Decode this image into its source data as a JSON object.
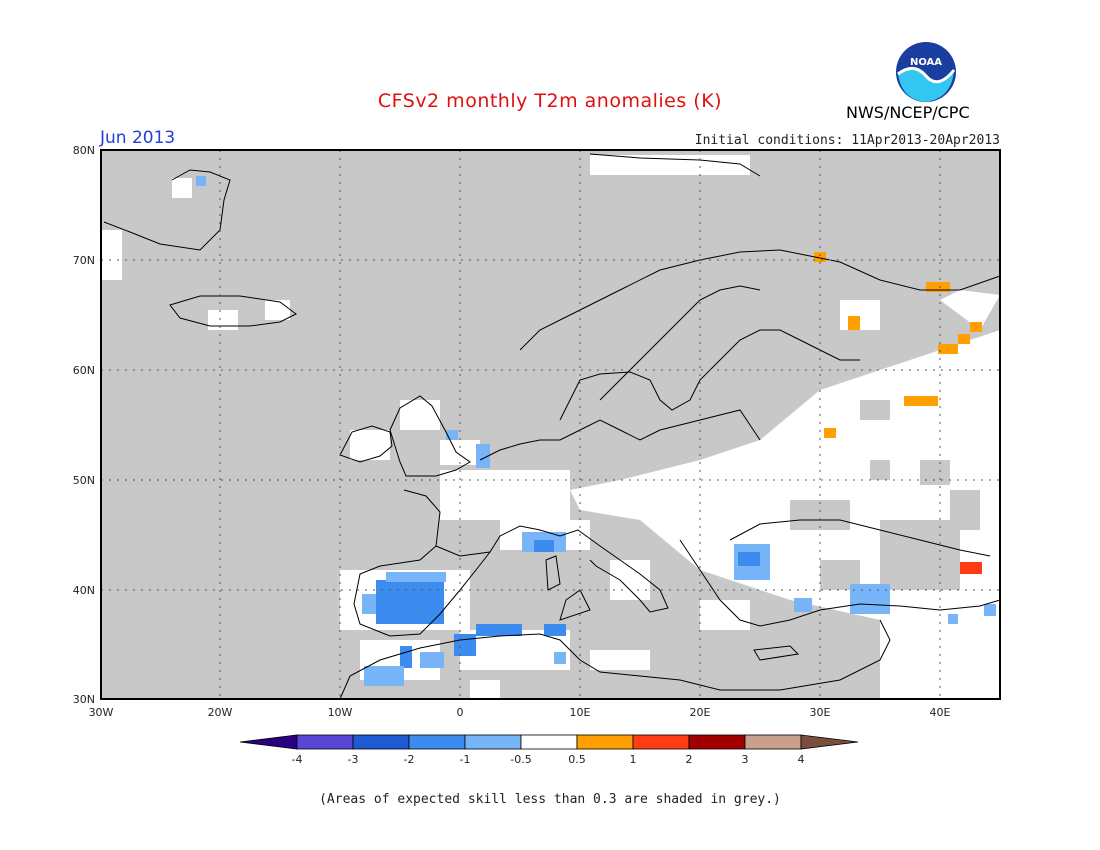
{
  "header": {
    "title": "CFSv2 monthly T2m anomalies (K)",
    "period": "Jun 2013",
    "initial_conditions": "Initial conditions: 11Apr2013-20Apr2013",
    "organization": "NWS/NCEP/CPC",
    "logo_text": "NOAA"
  },
  "map": {
    "lat_labels": [
      "80N",
      "70N",
      "60N",
      "50N",
      "40N",
      "30N"
    ],
    "lon_labels": [
      "30W",
      "20W",
      "10W",
      "0",
      "10E",
      "20E",
      "30E",
      "40E"
    ],
    "lon_range": [
      -30,
      45
    ],
    "lat_range": [
      30,
      80
    ],
    "colors": {
      "grey_low_skill": "#c8c8c8",
      "neutral": "#ffffff",
      "cold_1": "#3c8cf0",
      "cold_05": "#78b4f8",
      "warm_05": "#ffa000",
      "warm_1": "#ff3c14"
    }
  },
  "colorbar": {
    "labels": [
      "-4",
      "-3",
      "-2",
      "-1",
      "-0.5",
      "0.5",
      "1",
      "2",
      "3",
      "4"
    ],
    "colors": [
      "#2a0080",
      "#5a46d6",
      "#1e5ad2",
      "#3c8cf0",
      "#78b4f8",
      "#ffffff",
      "#ffa000",
      "#ff3c14",
      "#a00000",
      "#c8a08c",
      "#7a4e3c"
    ]
  },
  "footnote": "(Areas of expected skill less than 0.3 are shaded in grey.)"
}
